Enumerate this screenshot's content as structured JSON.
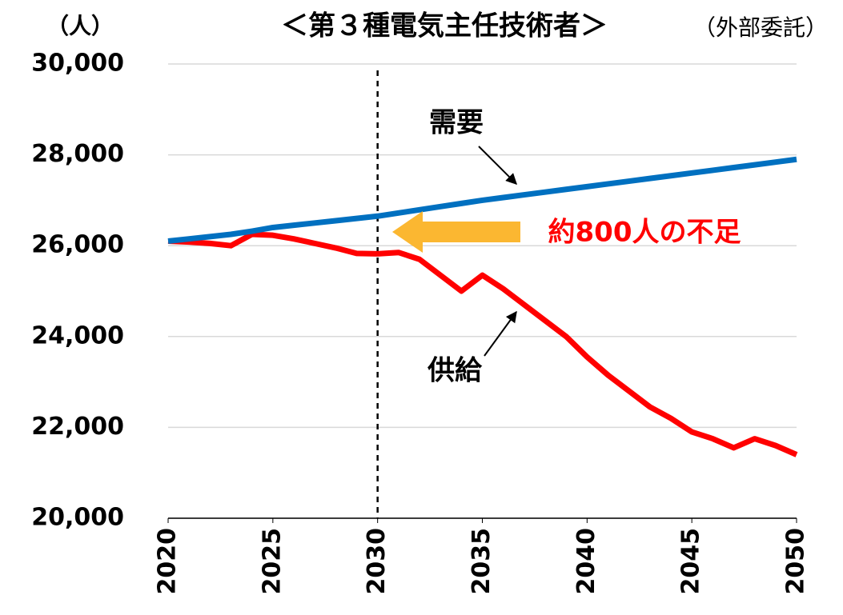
{
  "chart_data": {
    "type": "line",
    "title": "＜第３種電気主任技術者＞",
    "subtitle": "（外部委託）",
    "y_label": "（人）",
    "annotations": [
      "需要",
      "供給",
      "約800人の不足"
    ],
    "vline": 2030,
    "x": [
      2020,
      2021,
      2022,
      2023,
      2024,
      2025,
      2026,
      2027,
      2028,
      2029,
      2030,
      2031,
      2032,
      2033,
      2034,
      2035,
      2036,
      2037,
      2038,
      2039,
      2040,
      2041,
      2042,
      2043,
      2044,
      2045,
      2046,
      2047,
      2048,
      2049,
      2050
    ],
    "series": [
      {
        "name": "需要",
        "color": "#0070c0",
        "values": [
          26100,
          26150,
          26200,
          26250,
          26320,
          26400,
          26450,
          26500,
          26550,
          26600,
          26650,
          26720,
          26790,
          26860,
          26930,
          27000,
          27060,
          27120,
          27180,
          27240,
          27300,
          27360,
          27420,
          27480,
          27540,
          27600,
          27660,
          27720,
          27780,
          27840,
          27900
        ]
      },
      {
        "name": "供給",
        "color": "#ff0000",
        "values": [
          26100,
          26080,
          26050,
          26000,
          26250,
          26230,
          26150,
          26050,
          25950,
          25830,
          25820,
          25850,
          25700,
          25350,
          25000,
          25350,
          25050,
          24700,
          24350,
          24000,
          23550,
          23150,
          22800,
          22450,
          22200,
          21900,
          21750,
          21550,
          21750,
          21600,
          21400
        ]
      }
    ],
    "xlim": [
      2020,
      2050
    ],
    "xticks": [
      2020,
      2025,
      2030,
      2035,
      2040,
      2045,
      2050
    ],
    "ylim": [
      20000,
      30000
    ],
    "yticks": [
      {
        "value": 20000,
        "label": "20,000"
      },
      {
        "value": 22000,
        "label": "22,000"
      },
      {
        "value": 24000,
        "label": "24,000"
      },
      {
        "value": 26000,
        "label": "26,000"
      },
      {
        "value": 28000,
        "label": "28,000"
      },
      {
        "value": 30000,
        "label": "30,000"
      }
    ],
    "grid": true
  }
}
